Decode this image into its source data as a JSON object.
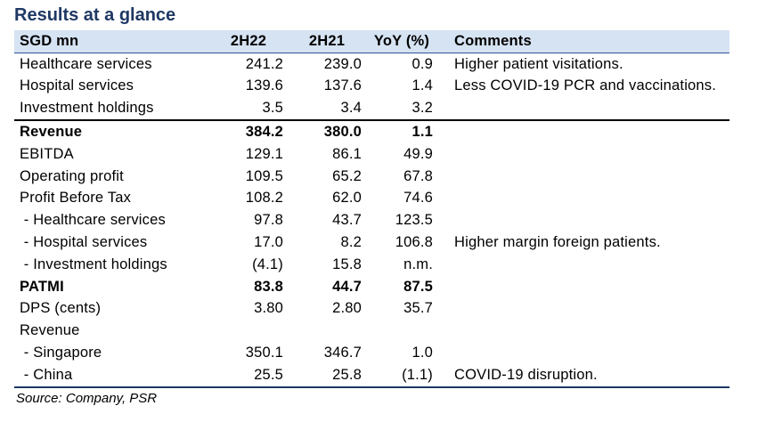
{
  "title": "Results at a glance",
  "table": {
    "headers": [
      "SGD mn",
      "2H22",
      "2H21",
      "YoY (%)",
      "Comments"
    ],
    "rows": [
      {
        "label": "Healthcare services",
        "h22": "241.2",
        "h21": "239.0",
        "yoy": "0.9",
        "comment": "Higher patient visitations."
      },
      {
        "label": "Hospital services",
        "h22": "139.6",
        "h21": "137.6",
        "yoy": "1.4",
        "comment": "Less COVID-19 PCR and vaccinations."
      },
      {
        "label": "Investment holdings",
        "h22": "3.5",
        "h21": "3.4",
        "yoy": "3.2",
        "comment": ""
      },
      {
        "label": "Revenue",
        "h22": "384.2",
        "h21": "380.0",
        "yoy": "1.1",
        "comment": ""
      },
      {
        "label": "EBITDA",
        "h22": "129.1",
        "h21": "86.1",
        "yoy": "49.9",
        "comment": ""
      },
      {
        "label": "Operating profit",
        "h22": "109.5",
        "h21": "65.2",
        "yoy": "67.8",
        "comment": ""
      },
      {
        "label": "Profit Before Tax",
        "h22": "108.2",
        "h21": "62.0",
        "yoy": "74.6",
        "comment": ""
      },
      {
        "label": " - Healthcare services",
        "h22": "97.8",
        "h21": "43.7",
        "yoy": "123.5",
        "comment": ""
      },
      {
        "label": " - Hospital services",
        "h22": "17.0",
        "h21": "8.2",
        "yoy": "106.8",
        "comment": "Higher margin foreign patients."
      },
      {
        "label": " - Investment holdings",
        "h22": "(4.1)",
        "h21": "15.8",
        "yoy": "n.m.",
        "comment": ""
      },
      {
        "label": "PATMI",
        "h22": "83.8",
        "h21": "44.7",
        "yoy": "87.5",
        "comment": ""
      },
      {
        "label": "DPS (cents)",
        "h22": "3.80",
        "h21": "2.80",
        "yoy": "35.7",
        "comment": ""
      },
      {
        "label": "Revenue",
        "h22": "",
        "h21": "",
        "yoy": "",
        "comment": ""
      },
      {
        "label": " - Singapore",
        "h22": "350.1",
        "h21": "346.7",
        "yoy": "1.0",
        "comment": ""
      },
      {
        "label": " - China",
        "h22": "25.5",
        "h21": "25.8",
        "yoy": "(1.1)",
        "comment": "COVID-19 disruption."
      }
    ]
  },
  "source": "Source: Company, PSR"
}
